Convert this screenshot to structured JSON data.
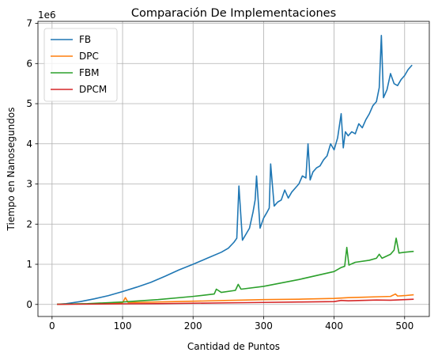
{
  "chart_data": {
    "type": "line",
    "title": "Comparación De Implementaciones",
    "xlabel": "Cantidad de Puntos",
    "ylabel": "Tiempo en Nanosegundos",
    "y_offset_label": "1e6",
    "xlim": [
      -20,
      535
    ],
    "ylim": [
      -300000,
      7050000
    ],
    "x_ticks": [
      0,
      100,
      200,
      300,
      400,
      500
    ],
    "x_tick_labels": [
      "0",
      "100",
      "200",
      "300",
      "400",
      "500"
    ],
    "y_ticks": [
      0,
      1000000,
      2000000,
      3000000,
      4000000,
      5000000,
      6000000,
      7000000
    ],
    "y_tick_labels": [
      "0",
      "1",
      "2",
      "3",
      "4",
      "5",
      "6",
      "7"
    ],
    "grid": true,
    "legend_position": "top-left",
    "series": [
      {
        "name": "FB",
        "color": "#1f77b4",
        "x": [
          8,
          20,
          40,
          60,
          80,
          100,
          120,
          140,
          160,
          180,
          200,
          220,
          240,
          250,
          258,
          262,
          265,
          270,
          275,
          280,
          285,
          288,
          290,
          295,
          300,
          305,
          308,
          310,
          315,
          320,
          325,
          330,
          335,
          340,
          345,
          350,
          355,
          360,
          363,
          366,
          370,
          375,
          380,
          385,
          390,
          395,
          400,
          405,
          410,
          413,
          416,
          420,
          425,
          430,
          435,
          440,
          445,
          450,
          455,
          460,
          464,
          467,
          470,
          475,
          480,
          485,
          490,
          495,
          500,
          505,
          510
        ],
        "y": [
          5000,
          20000,
          70000,
          140000,
          220000,
          320000,
          430000,
          550000,
          700000,
          860000,
          1000000,
          1150000,
          1300000,
          1400000,
          1550000,
          1650000,
          2950000,
          1600000,
          1750000,
          1900000,
          2300000,
          2600000,
          3200000,
          1900000,
          2150000,
          2300000,
          2400000,
          3500000,
          2450000,
          2550000,
          2600000,
          2850000,
          2650000,
          2800000,
          2900000,
          3000000,
          3200000,
          3150000,
          4000000,
          3100000,
          3300000,
          3400000,
          3450000,
          3600000,
          3700000,
          4000000,
          3850000,
          4150000,
          4750000,
          3900000,
          4300000,
          4200000,
          4300000,
          4250000,
          4500000,
          4400000,
          4600000,
          4750000,
          4950000,
          5050000,
          5400000,
          6700000,
          5150000,
          5350000,
          5750000,
          5500000,
          5450000,
          5600000,
          5700000,
          5850000,
          5950000
        ]
      },
      {
        "name": "DPC",
        "color": "#ff7f0e",
        "x": [
          8,
          50,
          100,
          104,
          108,
          150,
          200,
          250,
          300,
          350,
          400,
          420,
          440,
          460,
          480,
          487,
          490,
          500,
          512
        ],
        "y": [
          5000,
          15000,
          40000,
          170000,
          45000,
          60000,
          80000,
          100000,
          120000,
          130000,
          150000,
          170000,
          180000,
          190000,
          200000,
          260000,
          210000,
          220000,
          240000
        ]
      },
      {
        "name": "FBM",
        "color": "#2ca02c",
        "x": [
          8,
          50,
          100,
          150,
          200,
          230,
          233,
          240,
          260,
          264,
          268,
          300,
          350,
          400,
          410,
          415,
          418,
          421,
          430,
          450,
          460,
          464,
          468,
          480,
          485,
          488,
          492,
          500,
          512
        ],
        "y": [
          5000,
          20000,
          60000,
          120000,
          200000,
          260000,
          380000,
          300000,
          350000,
          500000,
          380000,
          450000,
          620000,
          820000,
          920000,
          950000,
          1420000,
          980000,
          1050000,
          1100000,
          1150000,
          1250000,
          1150000,
          1250000,
          1350000,
          1650000,
          1280000,
          1300000,
          1320000
        ]
      },
      {
        "name": "DPCM",
        "color": "#d62728",
        "x": [
          8,
          50,
          100,
          150,
          200,
          250,
          300,
          350,
          400,
          410,
          420,
          440,
          460,
          480,
          500,
          512
        ],
        "y": [
          3000,
          8000,
          15000,
          20000,
          30000,
          40000,
          50000,
          60000,
          70000,
          100000,
          90000,
          100000,
          110000,
          105000,
          120000,
          130000
        ]
      }
    ]
  }
}
